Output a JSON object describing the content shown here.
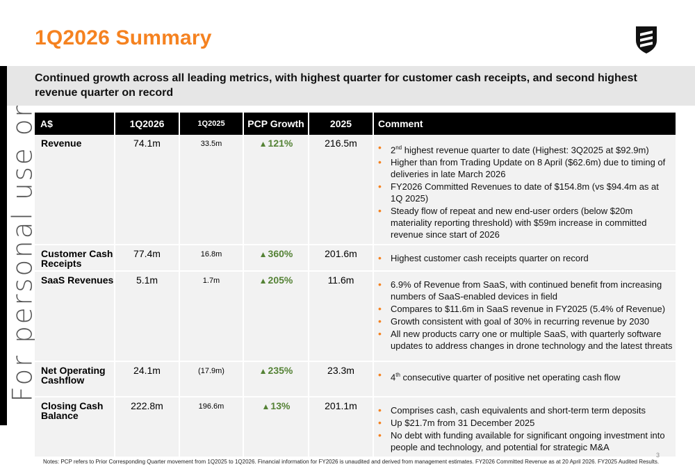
{
  "title": "1Q2026 Summary",
  "watermark": "For personal use only",
  "subtitle": "Continued growth across all leading metrics, with highest quarter for customer cash receipts, and second highest revenue quarter on record",
  "colors": {
    "accent": "#f58220",
    "growth": "#548235",
    "header_bg": "#000000",
    "row_bg": "#f2f2f2",
    "banner_bg": "#e6e6e6"
  },
  "table": {
    "headers": [
      "A$",
      "1Q2026",
      "1Q2025",
      "PCP Growth",
      "2025",
      "Comment"
    ],
    "rows": [
      {
        "metric": "Revenue",
        "q1_2026": "74.1m",
        "q1_2025": "33.5m",
        "growth": "121%",
        "fy2025": "216.5m",
        "comments": [
          {
            "sup": "2",
            "suffix": "nd",
            "text": " highest revenue quarter to date (Highest: 3Q2025 at $92.9m)"
          },
          {
            "text": "Higher than from Trading Update on 8 April ($62.6m) due to timing of deliveries in late March 2026"
          },
          {
            "text": "FY2026 Committed Revenues to date of $154.8m (vs $94.4m as at 1Q 2025)"
          },
          {
            "text": "Steady flow of repeat and new end-user orders (below $20m materiality reporting threshold) with $59m increase in committed revenue since start of 2026"
          }
        ]
      },
      {
        "metric": "Customer Cash Receipts",
        "q1_2026": "77.4m",
        "q1_2025": "16.8m",
        "growth": "360%",
        "fy2025": "201.6m",
        "comments": [
          {
            "text": "Highest customer cash receipts quarter on record"
          }
        ]
      },
      {
        "metric": "SaaS Revenues",
        "q1_2026": "5.1m",
        "q1_2025": "1.7m",
        "growth": "205%",
        "fy2025": "11.6m",
        "comments": [
          {
            "text": "6.9% of Revenue from SaaS, with continued benefit from increasing numbers of SaaS-enabled devices in field"
          },
          {
            "text": "Compares to $11.6m in SaaS revenue in FY2025 (5.4% of Revenue)"
          },
          {
            "text": "Growth consistent with goal of 30% in recurring revenue by 2030"
          },
          {
            "text": "All new products carry one or multiple SaaS, with quarterly software updates to address changes in drone technology and the latest threats"
          }
        ]
      },
      {
        "metric": "Net Operating Cashflow",
        "q1_2026": "24.1m",
        "q1_2025": "(17.9m)",
        "growth": "235%",
        "fy2025": "23.3m",
        "comments": [
          {
            "sup": "4",
            "suffix": "th",
            "text": " consecutive quarter of positive net operating cash flow"
          }
        ]
      },
      {
        "metric": "Closing Cash Balance",
        "q1_2026": "222.8m",
        "q1_2025": "196.6m",
        "growth": "13%",
        "fy2025": "201.1m",
        "comments": [
          {
            "text": "Comprises cash, cash equivalents and short-term term deposits"
          },
          {
            "text": "Up $21.7m from 31 December 2025"
          },
          {
            "text": "No debt with funding available for significant ongoing investment into people and technology, and potential for strategic M&A"
          }
        ]
      }
    ]
  },
  "notes": "Notes: PCP refers to Prior Corresponding Quarter movement from 1Q2025 to 1Q2026. Financial information for FY2026 is unaudited and derived from management estimates. FY2026 Committed Revenue as at 20 April 2026. FY2025 Audited Results.",
  "page_number": "3",
  "icons": {
    "logo": "shield-logo-icon",
    "growth": "up-triangle-icon",
    "bullet": "bullet-dot-icon"
  }
}
